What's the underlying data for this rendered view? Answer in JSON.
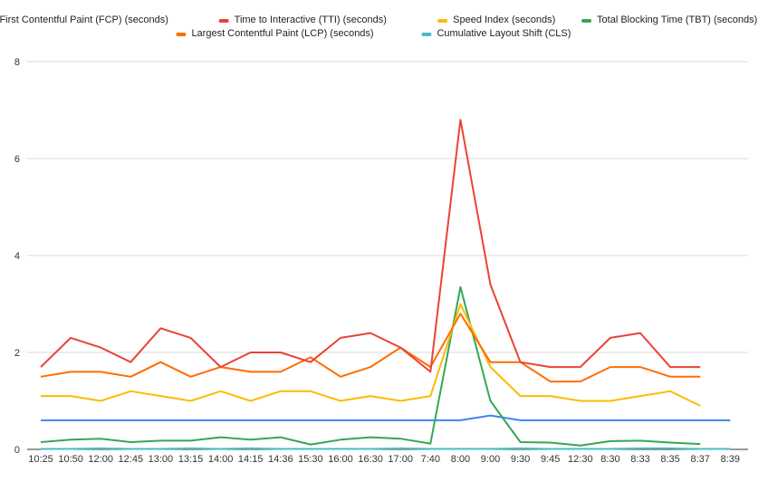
{
  "chart_data": {
    "type": "line",
    "title": "",
    "xlabel": "",
    "ylabel": "",
    "ylim": [
      0,
      8
    ],
    "yticks": [
      0,
      2,
      4,
      6,
      8
    ],
    "grid": true,
    "legend_position": "top",
    "categories": [
      "10:25",
      "10:50",
      "12:00",
      "12:45",
      "13:00",
      "13:15",
      "14:00",
      "14:15",
      "14:36",
      "15:30",
      "16:00",
      "16:30",
      "17:00",
      "7:40",
      "8:00",
      "9:00",
      "9:30",
      "9:45",
      "12:30",
      "8:30",
      "8:33",
      "8:35",
      "8:37",
      "8:39"
    ],
    "series": [
      {
        "name": "First Contentful Paint (FCP) (seconds)",
        "color": "#4285f4",
        "values": [
          0.6,
          0.6,
          0.6,
          0.6,
          0.6,
          0.6,
          0.6,
          0.6,
          0.6,
          0.6,
          0.6,
          0.6,
          0.6,
          0.6,
          0.6,
          0.7,
          0.6,
          0.6,
          0.6,
          0.6,
          0.6,
          0.6,
          0.6,
          0.6
        ]
      },
      {
        "name": "Time to Interactive (TTI) (seconds)",
        "color": "#ea4335",
        "values": [
          1.7,
          2.3,
          2.1,
          1.8,
          2.5,
          2.3,
          1.7,
          2.0,
          2.0,
          1.8,
          2.3,
          2.4,
          2.1,
          1.6,
          6.8,
          3.4,
          1.8,
          1.7,
          1.7,
          2.3,
          2.4,
          1.7,
          1.7,
          null
        ]
      },
      {
        "name": "Speed Index (seconds)",
        "color": "#fbbc04",
        "values": [
          1.1,
          1.1,
          1.0,
          1.2,
          1.1,
          1.0,
          1.2,
          1.0,
          1.2,
          1.2,
          1.0,
          1.1,
          1.0,
          1.1,
          3.0,
          1.7,
          1.1,
          1.1,
          1.0,
          1.0,
          1.1,
          1.2,
          0.9,
          null
        ]
      },
      {
        "name": "Total Blocking Time (TBT) (seconds)",
        "color": "#34a853",
        "values": [
          0.15,
          0.2,
          0.22,
          0.15,
          0.18,
          0.18,
          0.25,
          0.2,
          0.25,
          0.1,
          0.2,
          0.25,
          0.22,
          0.12,
          3.35,
          1.0,
          0.15,
          0.14,
          0.08,
          0.17,
          0.18,
          0.14,
          0.11,
          null
        ]
      },
      {
        "name": "Largest Contentful Paint (LCP) (seconds)",
        "color": "#ff6d01",
        "values": [
          1.5,
          1.6,
          1.6,
          1.5,
          1.8,
          1.5,
          1.7,
          1.6,
          1.6,
          1.9,
          1.5,
          1.7,
          2.1,
          1.7,
          2.8,
          1.8,
          1.8,
          1.4,
          1.4,
          1.7,
          1.7,
          1.5,
          1.5,
          null
        ]
      },
      {
        "name": "Cumulative Layout Shift (CLS)",
        "color": "#46bdc6",
        "values": [
          0.01,
          0.01,
          0.02,
          0.01,
          0.01,
          0.02,
          0.01,
          0.02,
          0.01,
          0.01,
          0.01,
          0.01,
          0.02,
          0.01,
          0.01,
          0.01,
          0.02,
          0.01,
          0.01,
          0.01,
          0.02,
          0.02,
          0.01,
          0.01
        ]
      }
    ]
  }
}
